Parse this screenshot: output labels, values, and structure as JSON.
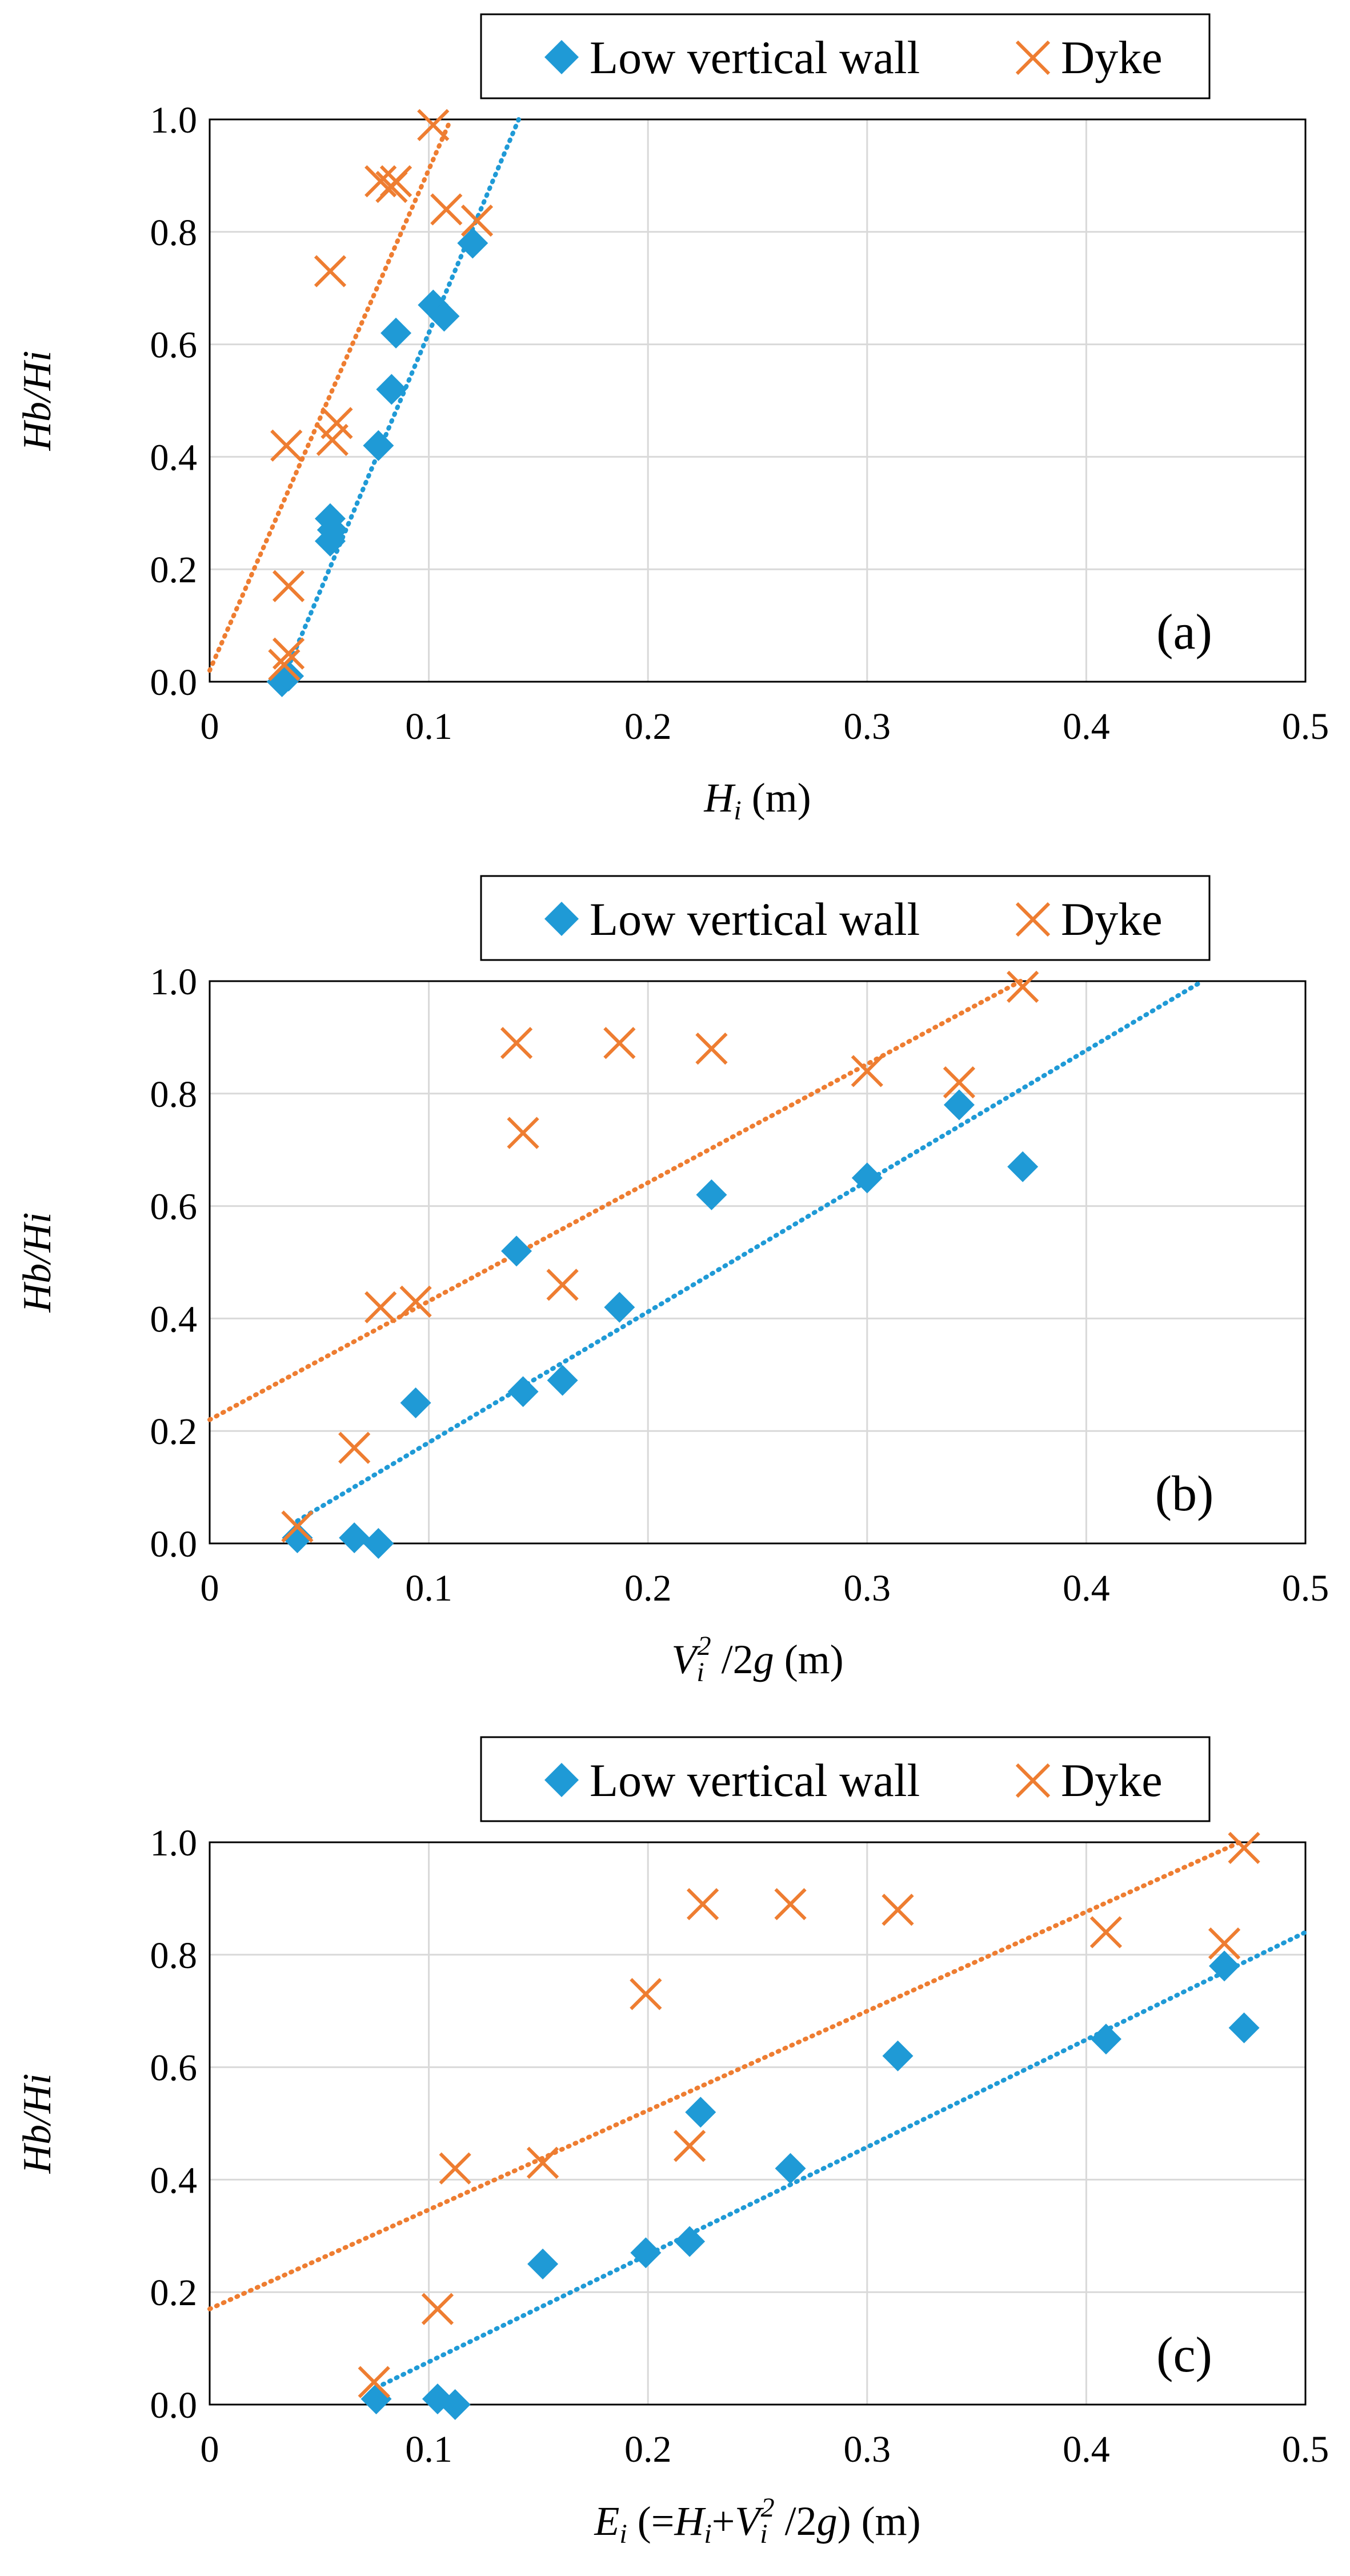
{
  "figure": {
    "colors": {
      "wall": "#1f9ad6",
      "dyke": "#ee7d31",
      "grid": "#d9d9d9",
      "axis": "#000000"
    }
  },
  "panels": [
    {
      "id": "a",
      "panel_label": "(a)",
      "xlabel": {
        "main": "H",
        "sub": "i",
        "rest": " (m)"
      },
      "ylabel": "Hb/Hi",
      "legend": {
        "wall": "Low vertical wall",
        "dyke": "Dyke"
      },
      "x_tick_labels": [
        "0",
        "0.1",
        "0.2",
        "0.3",
        "0.4",
        "0.5"
      ],
      "y_tick_labels": [
        "0.0",
        "0.2",
        "0.4",
        "0.6",
        "0.8",
        "1.0"
      ]
    },
    {
      "id": "b",
      "panel_label": "(b)",
      "xlabel": {
        "v": "V",
        "sub": "i",
        "sup": "2",
        "rest1": " /2",
        "g": "g",
        "rest2": " (m)"
      },
      "ylabel": "Hb/Hi",
      "legend": {
        "wall": "Low vertical wall",
        "dyke": "Dyke"
      },
      "x_tick_labels": [
        "0",
        "0.1",
        "0.2",
        "0.3",
        "0.4",
        "0.5"
      ],
      "y_tick_labels": [
        "0.0",
        "0.2",
        "0.4",
        "0.6",
        "0.8",
        "1.0"
      ]
    },
    {
      "id": "c",
      "panel_label": "(c)",
      "xlabel": {
        "e": "E",
        "esub": "i",
        "p1": " (=",
        "h": "H",
        "hsub": "i",
        "p2": "+",
        "v": "V",
        "vsub": "i",
        "sup": "2",
        "p3": " /2",
        "g": "g",
        "p4": ") (m)"
      },
      "ylabel": "Hb/Hi",
      "legend": {
        "wall": "Low vertical wall",
        "dyke": "Dyke"
      },
      "x_tick_labels": [
        "0",
        "0.1",
        "0.2",
        "0.3",
        "0.4",
        "0.5"
      ],
      "y_tick_labels": [
        "0.0",
        "0.2",
        "0.4",
        "0.6",
        "0.8",
        "1.0"
      ]
    }
  ],
  "chart_data": [
    {
      "type": "scatter",
      "title": "",
      "xlabel": "Hi (m)",
      "ylabel": "Hb/Hi",
      "xlim": [
        0,
        0.5
      ],
      "ylim": [
        0,
        1.0
      ],
      "grid": true,
      "legend_position": "top",
      "series": [
        {
          "name": "Low vertical wall",
          "marker": "diamond",
          "x": [
            0.033,
            0.036,
            0.055,
            0.056,
            0.055,
            0.077,
            0.083,
            0.085,
            0.102,
            0.107,
            0.12
          ],
          "y": [
            0.0,
            0.01,
            0.25,
            0.27,
            0.29,
            0.42,
            0.52,
            0.62,
            0.67,
            0.65,
            0.78
          ]
        },
        {
          "name": "Dyke",
          "marker": "x",
          "x": [
            0.034,
            0.036,
            0.036,
            0.035,
            0.056,
            0.058,
            0.055,
            0.078,
            0.083,
            0.085,
            0.102,
            0.108,
            0.122
          ],
          "y": [
            0.03,
            0.05,
            0.17,
            0.42,
            0.43,
            0.46,
            0.73,
            0.89,
            0.88,
            0.89,
            0.99,
            0.84,
            0.82
          ]
        }
      ],
      "trendlines": [
        {
          "series": "Low vertical wall",
          "style": "dotted",
          "x": [
            0.033,
            0.141
          ],
          "y": [
            0.0,
            1.0
          ]
        },
        {
          "series": "Dyke",
          "style": "dotted",
          "x": [
            0.0,
            0.11
          ],
          "y": [
            0.02,
            1.0
          ]
        }
      ]
    },
    {
      "type": "scatter",
      "title": "",
      "xlabel": "Vi^2 /2g (m)",
      "ylabel": "Hb/Hi",
      "xlim": [
        0,
        0.5
      ],
      "ylim": [
        0,
        1.0
      ],
      "grid": true,
      "legend_position": "top",
      "series": [
        {
          "name": "Low vertical wall",
          "marker": "diamond",
          "x": [
            0.04,
            0.066,
            0.077,
            0.094,
            0.143,
            0.14,
            0.161,
            0.187,
            0.229,
            0.3,
            0.342,
            0.371
          ],
          "y": [
            0.01,
            0.01,
            0.0,
            0.25,
            0.27,
            0.52,
            0.29,
            0.42,
            0.62,
            0.65,
            0.78,
            0.67
          ]
        },
        {
          "name": "Dyke",
          "marker": "x",
          "x": [
            0.04,
            0.066,
            0.078,
            0.094,
            0.14,
            0.143,
            0.161,
            0.187,
            0.229,
            0.3,
            0.342,
            0.371
          ],
          "y": [
            0.03,
            0.17,
            0.42,
            0.43,
            0.89,
            0.73,
            0.46,
            0.89,
            0.88,
            0.84,
            0.82,
            0.99
          ]
        }
      ],
      "trendlines": [
        {
          "series": "Low vertical wall",
          "style": "dotted",
          "x": [
            0.04,
            0.453
          ],
          "y": [
            0.04,
            1.0
          ]
        },
        {
          "series": "Dyke",
          "style": "dotted",
          "x": [
            0.0,
            0.37
          ],
          "y": [
            0.22,
            1.0
          ]
        }
      ]
    },
    {
      "type": "scatter",
      "title": "",
      "xlabel": "Ei (=Hi+Vi^2 /2g) (m)",
      "ylabel": "Hb/Hi",
      "xlim": [
        0,
        0.5
      ],
      "ylim": [
        0,
        1.0
      ],
      "grid": true,
      "legend_position": "top",
      "series": [
        {
          "name": "Low vertical wall",
          "marker": "diamond",
          "x": [
            0.076,
            0.104,
            0.112,
            0.152,
            0.199,
            0.219,
            0.224,
            0.265,
            0.314,
            0.409,
            0.463,
            0.472
          ],
          "y": [
            0.01,
            0.01,
            0.0,
            0.25,
            0.27,
            0.29,
            0.52,
            0.42,
            0.62,
            0.65,
            0.78,
            0.67
          ]
        },
        {
          "name": "Dyke",
          "marker": "x",
          "x": [
            0.075,
            0.104,
            0.112,
            0.152,
            0.199,
            0.219,
            0.225,
            0.265,
            0.314,
            0.409,
            0.463,
            0.472
          ],
          "y": [
            0.04,
            0.17,
            0.42,
            0.43,
            0.73,
            0.46,
            0.89,
            0.89,
            0.88,
            0.84,
            0.82,
            0.99
          ]
        }
      ],
      "trendlines": [
        {
          "series": "Low vertical wall",
          "style": "dotted",
          "x": [
            0.076,
            0.5
          ],
          "y": [
            0.03,
            0.84
          ]
        },
        {
          "series": "Dyke",
          "style": "dotted",
          "x": [
            0.0,
            0.47
          ],
          "y": [
            0.17,
            1.0
          ]
        }
      ]
    }
  ]
}
